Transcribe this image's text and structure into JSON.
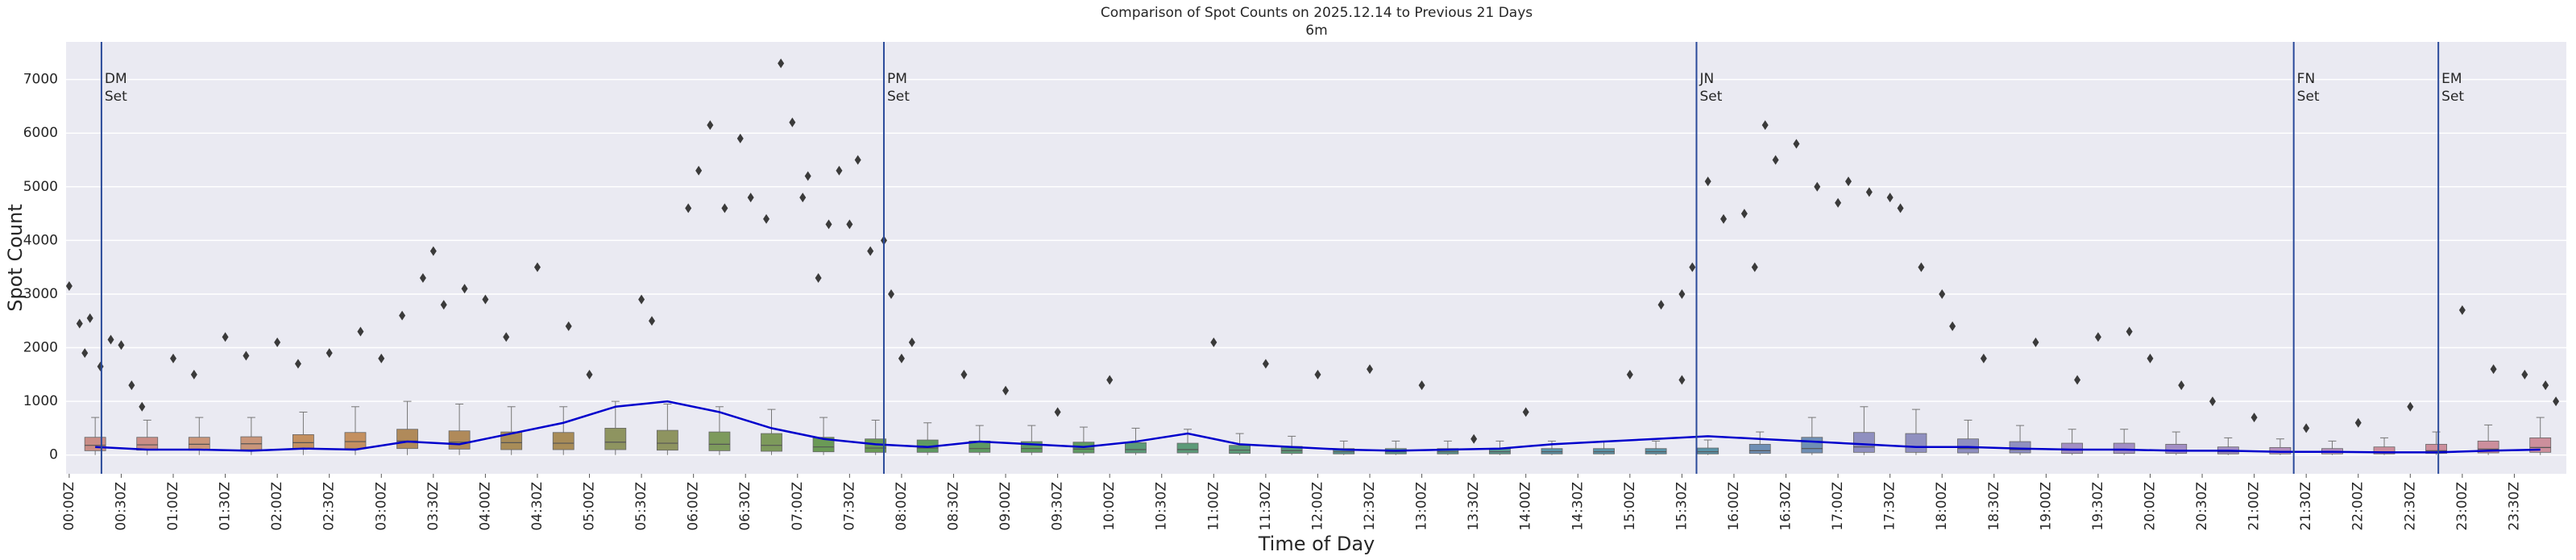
{
  "chart_data": {
    "type": "box",
    "title": "Comparison of Spot Counts on 2025.12.14 to Previous 21 Days",
    "subtitle": "6m",
    "xlabel": "Time of Day",
    "ylabel": "Spot Count",
    "xlim": [
      -0.03,
      24
    ],
    "ylim": [
      -350,
      7700
    ],
    "yticks": [
      0,
      1000,
      2000,
      3000,
      4000,
      5000,
      6000,
      7000
    ],
    "xticks": [
      {
        "value": 0,
        "label": "00:00Z"
      },
      {
        "value": 0.5,
        "label": "00:30Z"
      },
      {
        "value": 1,
        "label": "01:00Z"
      },
      {
        "value": 1.5,
        "label": "01:30Z"
      },
      {
        "value": 2,
        "label": "02:00Z"
      },
      {
        "value": 2.5,
        "label": "02:30Z"
      },
      {
        "value": 3,
        "label": "03:00Z"
      },
      {
        "value": 3.5,
        "label": "03:30Z"
      },
      {
        "value": 4,
        "label": "04:00Z"
      },
      {
        "value": 4.5,
        "label": "04:30Z"
      },
      {
        "value": 5,
        "label": "05:00Z"
      },
      {
        "value": 5.5,
        "label": "05:30Z"
      },
      {
        "value": 6,
        "label": "06:00Z"
      },
      {
        "value": 6.5,
        "label": "06:30Z"
      },
      {
        "value": 7,
        "label": "07:00Z"
      },
      {
        "value": 7.5,
        "label": "07:30Z"
      },
      {
        "value": 8,
        "label": "08:00Z"
      },
      {
        "value": 8.5,
        "label": "08:30Z"
      },
      {
        "value": 9,
        "label": "09:00Z"
      },
      {
        "value": 9.5,
        "label": "09:30Z"
      },
      {
        "value": 10,
        "label": "10:00Z"
      },
      {
        "value": 10.5,
        "label": "10:30Z"
      },
      {
        "value": 11,
        "label": "11:00Z"
      },
      {
        "value": 11.5,
        "label": "11:30Z"
      },
      {
        "value": 12,
        "label": "12:00Z"
      },
      {
        "value": 12.5,
        "label": "12:30Z"
      },
      {
        "value": 13,
        "label": "13:00Z"
      },
      {
        "value": 13.5,
        "label": "13:30Z"
      },
      {
        "value": 14,
        "label": "14:00Z"
      },
      {
        "value": 14.5,
        "label": "14:30Z"
      },
      {
        "value": 15,
        "label": "15:00Z"
      },
      {
        "value": 15.5,
        "label": "15:30Z"
      },
      {
        "value": 16,
        "label": "16:00Z"
      },
      {
        "value": 16.5,
        "label": "16:30Z"
      },
      {
        "value": 17,
        "label": "17:00Z"
      },
      {
        "value": 17.5,
        "label": "17:30Z"
      },
      {
        "value": 18,
        "label": "18:00Z"
      },
      {
        "value": 18.5,
        "label": "18:30Z"
      },
      {
        "value": 19,
        "label": "19:00Z"
      },
      {
        "value": 19.5,
        "label": "19:30Z"
      },
      {
        "value": 20,
        "label": "20:00Z"
      },
      {
        "value": 20.5,
        "label": "20:30Z"
      },
      {
        "value": 21,
        "label": "21:00Z"
      },
      {
        "value": 21.5,
        "label": "21:30Z"
      },
      {
        "value": 22,
        "label": "22:00Z"
      },
      {
        "value": 22.5,
        "label": "22:30Z"
      },
      {
        "value": 23,
        "label": "23:00Z"
      },
      {
        "value": 23.5,
        "label": "23:30Z"
      }
    ],
    "grid": true,
    "boxes": {
      "x": [
        0.25,
        0.75,
        1.25,
        1.75,
        2.25,
        2.75,
        3.25,
        3.75,
        4.25,
        4.75,
        5.25,
        5.75,
        6.25,
        6.75,
        7.25,
        7.75,
        8.25,
        8.75,
        9.25,
        9.75,
        10.25,
        10.75,
        11.25,
        11.75,
        12.25,
        12.75,
        13.25,
        13.75,
        14.25,
        14.75,
        15.25,
        15.75,
        16.25,
        16.75,
        17.25,
        17.75,
        18.25,
        18.75,
        19.25,
        19.75,
        20.25,
        20.75,
        21.25,
        21.75,
        22.25,
        22.75,
        23.25,
        23.75
      ],
      "q1": [
        80,
        90,
        90,
        100,
        110,
        120,
        120,
        110,
        100,
        100,
        100,
        90,
        80,
        70,
        60,
        50,
        50,
        50,
        50,
        40,
        40,
        40,
        30,
        30,
        20,
        20,
        20,
        20,
        20,
        20,
        20,
        20,
        30,
        40,
        50,
        50,
        40,
        40,
        30,
        30,
        30,
        20,
        20,
        20,
        20,
        30,
        40,
        50
      ],
      "median": [
        180,
        190,
        200,
        210,
        230,
        250,
        260,
        240,
        230,
        220,
        240,
        220,
        200,
        180,
        150,
        130,
        130,
        120,
        120,
        110,
        100,
        100,
        90,
        80,
        60,
        60,
        60,
        60,
        60,
        60,
        60,
        60,
        80,
        120,
        150,
        150,
        120,
        100,
        90,
        90,
        80,
        60,
        60,
        50,
        60,
        80,
        110,
        140
      ],
      "q3": [
        330,
        330,
        330,
        340,
        380,
        420,
        480,
        450,
        430,
        420,
        500,
        460,
        430,
        400,
        330,
        300,
        280,
        260,
        250,
        240,
        230,
        220,
        180,
        160,
        120,
        120,
        120,
        120,
        120,
        120,
        120,
        130,
        200,
        330,
        420,
        400,
        300,
        250,
        220,
        220,
        200,
        150,
        140,
        120,
        150,
        200,
        260,
        320
      ],
      "whislo": [
        0,
        0,
        0,
        0,
        0,
        0,
        0,
        0,
        0,
        0,
        0,
        0,
        0,
        0,
        0,
        0,
        0,
        0,
        0,
        0,
        0,
        0,
        0,
        0,
        0,
        0,
        0,
        0,
        0,
        0,
        0,
        0,
        0,
        0,
        0,
        0,
        0,
        0,
        0,
        0,
        0,
        0,
        0,
        0,
        0,
        0,
        0,
        0
      ],
      "whishi": [
        700,
        650,
        700,
        700,
        800,
        900,
        1000,
        950,
        900,
        900,
        1000,
        950,
        900,
        850,
        700,
        650,
        600,
        550,
        550,
        520,
        500,
        480,
        400,
        350,
        260,
        260,
        260,
        260,
        260,
        260,
        260,
        280,
        430,
        700,
        900,
        850,
        650,
        550,
        480,
        480,
        430,
        320,
        300,
        260,
        320,
        430,
        560,
        700
      ],
      "colors": [
        "#c98d86",
        "#c98d86",
        "#c9967a",
        "#c9967a",
        "#c49060",
        "#c49060",
        "#b08a5a",
        "#b08a5a",
        "#a88c58",
        "#a88c58",
        "#8e9460",
        "#8e9460",
        "#7d9a5c",
        "#7d9a5c",
        "#6a9a56",
        "#6a9a56",
        "#5f9a62",
        "#5f9a62",
        "#5f9a62",
        "#5f9a62",
        "#5c9a78",
        "#5c9a78",
        "#5c9a78",
        "#5c9a78",
        "#5c9890",
        "#5c9890",
        "#5c9890",
        "#5c9890",
        "#5b94a8",
        "#5b94a8",
        "#5b94a8",
        "#5b94a8",
        "#6f8fb5",
        "#6f8fb5",
        "#8f8fc0",
        "#8f8fc0",
        "#8f8fc0",
        "#8f8fc0",
        "#a38fc4",
        "#a38fc4",
        "#a38fc4",
        "#a38fc4",
        "#b58fbc",
        "#b58fbc",
        "#cc8f9c",
        "#cc8f9c",
        "#cc8f9c",
        "#cc8f9c"
      ]
    },
    "line": {
      "color": "#0000cc",
      "values": [
        150,
        100,
        100,
        80,
        120,
        100,
        250,
        200,
        400,
        600,
        900,
        1000,
        800,
        500,
        300,
        200,
        150,
        250,
        200,
        150,
        250,
        400,
        200,
        150,
        100,
        80,
        100,
        120,
        200,
        250,
        300,
        350,
        300,
        250,
        200,
        150,
        150,
        120,
        100,
        100,
        80,
        80,
        60,
        60,
        50,
        50,
        80,
        100
      ]
    },
    "outliers": {
      "color": "#3a3a3a",
      "x": [
        0,
        0.1,
        0.15,
        0.2,
        0.3,
        0.4,
        0.5,
        0.6,
        0.7,
        1.0,
        1.2,
        1.5,
        1.7,
        2.0,
        2.2,
        2.5,
        2.8,
        3.0,
        3.2,
        3.4,
        3.5,
        3.6,
        3.8,
        4.0,
        4.2,
        4.5,
        4.8,
        5.0,
        5.5,
        5.6,
        5.95,
        6.05,
        6.16,
        6.3,
        6.45,
        6.55,
        6.7,
        6.84,
        6.95,
        7.05,
        7.1,
        7.2,
        7.3,
        7.4,
        7.5,
        7.58,
        7.7,
        7.83,
        7.9,
        8.0,
        8.1,
        8.6,
        9,
        9.5,
        10,
        11,
        11.5,
        12,
        12.5,
        13,
        13.5,
        14,
        15,
        15.5,
        15.3,
        15.5,
        15.6,
        15.75,
        15.9,
        16.1,
        16.2,
        16.3,
        16.4,
        16.6,
        16.8,
        17.0,
        17.1,
        17.3,
        17.5,
        17.6,
        17.8,
        18.0,
        18.1,
        18.4,
        18.9,
        19.3,
        19.5,
        19.8,
        20,
        20.3,
        20.6,
        21.0,
        21.5,
        22,
        22.5,
        23.0,
        23.3,
        23.6,
        23.8,
        23.9
      ],
      "y": [
        3150,
        2450,
        1900,
        2550,
        1650,
        2150,
        2050,
        1300,
        900,
        1800,
        1500,
        2200,
        1850,
        2100,
        1700,
        1900,
        2300,
        1800,
        2600,
        3300,
        3800,
        2800,
        3100,
        2900,
        2200,
        3500,
        2400,
        1500,
        2900,
        2500,
        4600,
        5300,
        6150,
        4600,
        5900,
        4800,
        4400,
        7300,
        6200,
        4800,
        5200,
        3300,
        4300,
        5300,
        4300,
        5500,
        3800,
        4000,
        3000,
        1800,
        2100,
        1500,
        1200,
        800,
        1400,
        2100,
        1700,
        1500,
        1600,
        1300,
        300,
        800,
        1500,
        1400,
        2800,
        3000,
        3500,
        5100,
        4400,
        4500,
        3500,
        6150,
        5500,
        5800,
        5000,
        4700,
        5100,
        4900,
        4800,
        4600,
        3500,
        3000,
        2400,
        1800,
        2100,
        1400,
        2200,
        2300,
        1800,
        1300,
        1000,
        700,
        500,
        600,
        900,
        2700,
        1600,
        1500,
        1300,
        1000
      ]
    },
    "annotations": [
      {
        "x": 0.31,
        "lines": [
          "DM",
          "Set"
        ]
      },
      {
        "x": 7.83,
        "lines": [
          "PM",
          "Set"
        ]
      },
      {
        "x": 15.64,
        "lines": [
          "JN",
          "Set"
        ]
      },
      {
        "x": 21.38,
        "lines": [
          "FN",
          "Set"
        ]
      },
      {
        "x": 22.77,
        "lines": [
          "EM",
          "Set"
        ]
      }
    ],
    "annotation_color": "#2a4a9a"
  }
}
